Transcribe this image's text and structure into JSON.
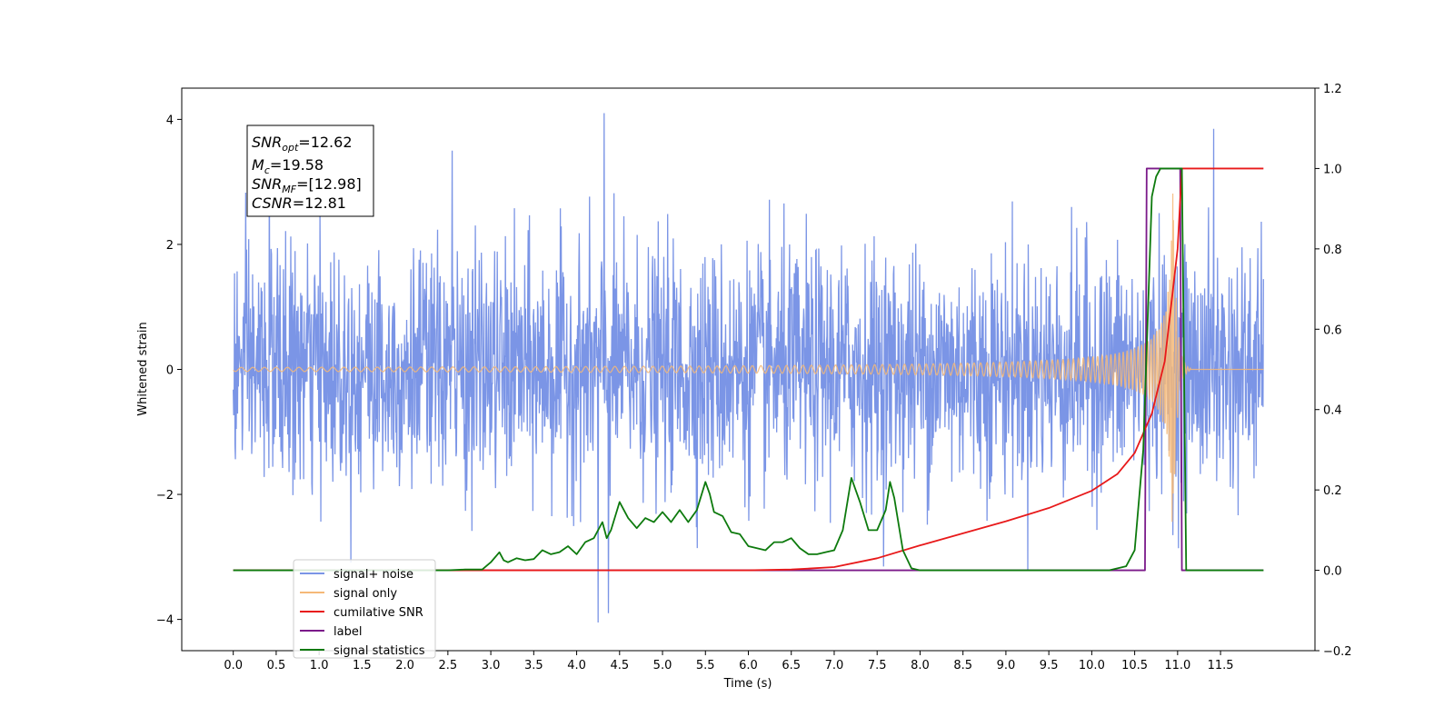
{
  "chart_data": {
    "type": "line",
    "xlabel": "Time (s)",
    "ylabel": "Whitened strain",
    "xlim": [
      -0.6,
      12.6
    ],
    "ylim": [
      -4.5,
      4.5
    ],
    "y2lim": [
      -0.2,
      1.2
    ],
    "x_ticks": [
      "0.0",
      "0.5",
      "1.0",
      "1.5",
      "2.0",
      "2.5",
      "3.0",
      "3.5",
      "4.0",
      "4.5",
      "5.0",
      "5.5",
      "6.0",
      "6.5",
      "7.0",
      "7.5",
      "8.0",
      "8.5",
      "9.0",
      "9.5",
      "10.0",
      "10.5",
      "11.0",
      "11.5"
    ],
    "y_ticks": [
      "4",
      "2",
      "0",
      "−2",
      "−4"
    ],
    "y2_ticks": [
      "1.2",
      "1.0",
      "0.8",
      "0.6",
      "0.4",
      "0.2",
      "0.0",
      "−0.2"
    ],
    "grid": false,
    "legend_position": "lower-left",
    "info_box": [
      {
        "symbol": "SNR",
        "sub": "opt",
        "value": "=12.62"
      },
      {
        "symbol": "M",
        "sub": "c",
        "value": "=19.58"
      },
      {
        "symbol": "SNR",
        "sub": "MF",
        "value": "=[12.98]"
      },
      {
        "symbol": "CSNR",
        "sub": "",
        "value": "=12.81"
      }
    ],
    "series": [
      {
        "name": "signal+ noise",
        "color": "#7b95e6",
        "axis": "left",
        "description_stats": {
          "x_start": 0.0,
          "x_end": 12.0,
          "typical_range": [
            -2.5,
            2.5
          ],
          "peaks": [
            [
              4.32,
              4.1
            ],
            [
              0.42,
              3.55
            ],
            [
              2.55,
              3.5
            ],
            [
              11.42,
              3.85
            ],
            [
              4.25,
              -4.05
            ],
            [
              4.37,
              -3.9
            ]
          ]
        }
      },
      {
        "name": "signal only",
        "color": "#f5b878",
        "axis": "left",
        "chirp": {
          "start": 0.0,
          "merger": 10.95,
          "end": 12.0,
          "peak_amplitude": 2.7
        }
      },
      {
        "name": "cumilative SNR",
        "color": "#e8191a",
        "axis": "right",
        "x": [
          0.0,
          6.0,
          6.5,
          7.0,
          7.5,
          8.0,
          8.5,
          9.0,
          9.5,
          10.0,
          10.3,
          10.5,
          10.7,
          10.85,
          11.0,
          11.05,
          12.0
        ],
        "y": [
          0.0,
          0.0,
          0.002,
          0.008,
          0.03,
          0.062,
          0.092,
          0.122,
          0.155,
          0.198,
          0.24,
          0.292,
          0.39,
          0.52,
          0.8,
          1.0,
          1.0
        ]
      },
      {
        "name": "label",
        "color": "#7b1a8a",
        "axis": "right",
        "x": [
          0.0,
          10.62,
          10.64,
          11.03,
          11.05,
          12.0
        ],
        "y": [
          0.0,
          0.0,
          1.0,
          1.0,
          0.0,
          0.0
        ]
      },
      {
        "name": "signal statistics",
        "color": "#0d7a0d",
        "axis": "right",
        "x": [
          0.0,
          2.5,
          2.7,
          2.9,
          3.0,
          3.1,
          3.15,
          3.2,
          3.3,
          3.4,
          3.5,
          3.6,
          3.7,
          3.8,
          3.9,
          4.0,
          4.1,
          4.2,
          4.3,
          4.35,
          4.4,
          4.5,
          4.6,
          4.7,
          4.8,
          4.9,
          5.0,
          5.1,
          5.2,
          5.3,
          5.4,
          5.5,
          5.55,
          5.6,
          5.7,
          5.8,
          5.9,
          6.0,
          6.1,
          6.2,
          6.3,
          6.4,
          6.5,
          6.6,
          6.7,
          6.8,
          6.9,
          7.0,
          7.1,
          7.2,
          7.25,
          7.3,
          7.4,
          7.5,
          7.6,
          7.65,
          7.7,
          7.8,
          7.9,
          8.0,
          10.0,
          10.2,
          10.4,
          10.5,
          10.6,
          10.7,
          10.75,
          10.8,
          11.05,
          11.1,
          12.0
        ],
        "y": [
          0.0,
          0.0,
          0.002,
          0.002,
          0.02,
          0.045,
          0.025,
          0.02,
          0.03,
          0.025,
          0.028,
          0.05,
          0.04,
          0.045,
          0.06,
          0.04,
          0.07,
          0.08,
          0.12,
          0.08,
          0.1,
          0.17,
          0.13,
          0.105,
          0.13,
          0.12,
          0.145,
          0.12,
          0.15,
          0.12,
          0.15,
          0.22,
          0.19,
          0.145,
          0.135,
          0.095,
          0.09,
          0.06,
          0.055,
          0.05,
          0.07,
          0.07,
          0.08,
          0.055,
          0.04,
          0.04,
          0.045,
          0.05,
          0.1,
          0.23,
          0.2,
          0.17,
          0.1,
          0.1,
          0.15,
          0.22,
          0.18,
          0.05,
          0.005,
          0.0,
          0.0,
          0.0,
          0.01,
          0.05,
          0.3,
          0.93,
          0.98,
          1.0,
          1.0,
          0.0,
          0.0
        ]
      }
    ]
  }
}
